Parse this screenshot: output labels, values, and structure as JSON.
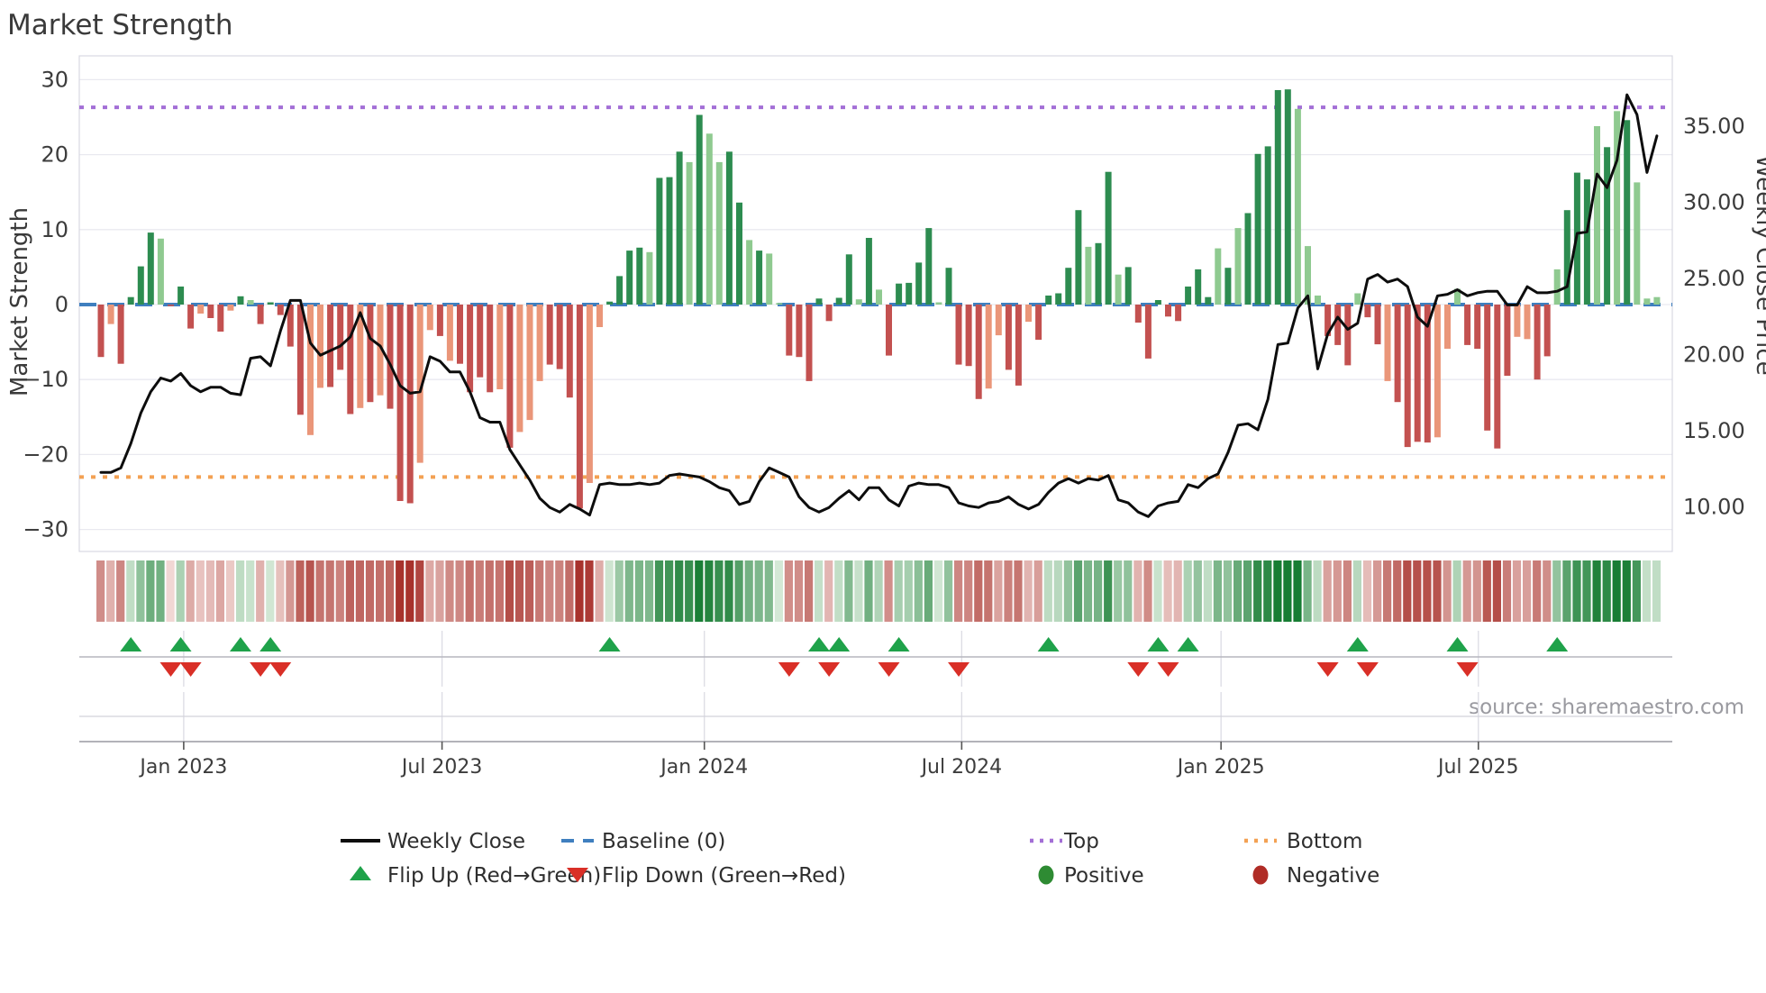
{
  "title": "Market Strength",
  "source_note": "source: sharemaestro.com",
  "left_axis": {
    "label": "Market Strength",
    "tick_labels": [
      "30",
      "20",
      "10",
      "0",
      "−10",
      "−20",
      "−30"
    ],
    "tick_values": [
      30,
      20,
      10,
      0,
      -10,
      -20,
      -30
    ]
  },
  "right_axis": {
    "label": "Weekly Close Price",
    "tick_labels": [
      "35.00",
      "30.00",
      "25.00",
      "20.00",
      "15.00",
      "10.00"
    ],
    "tick_values": [
      35,
      30,
      25,
      20,
      15,
      10
    ]
  },
  "x_axis": {
    "tick_labels": [
      "Jan 2023",
      "Jul 2023",
      "Jan 2024",
      "Jul 2024",
      "Jan 2025",
      "Jul 2025"
    ],
    "tick_weeks": [
      8.3,
      34.2,
      60.5,
      86.3,
      112.3,
      138.1
    ]
  },
  "legend": {
    "rows": [
      [
        {
          "label": "Weekly Close",
          "marker": "line",
          "color": "#0d0d0d"
        },
        {
          "label": "Baseline (0)",
          "marker": "dashes",
          "color": "#3f7fbf"
        },
        {
          "label": "Top",
          "marker": "dots",
          "color": "#a36fd6"
        },
        {
          "label": "Bottom",
          "marker": "dots",
          "color": "#f3a153"
        }
      ],
      [
        {
          "label": "Flip Up (Red→Green)",
          "marker": "triangle-up",
          "color": "#1fa24a"
        },
        {
          "label": "Flip Down (Green→Red)",
          "marker": "triangle-down",
          "color": "#d92f27"
        },
        {
          "label": "Positive",
          "marker": "circle",
          "color": "#2e8b33"
        },
        {
          "label": "Negative",
          "marker": "circle",
          "color": "#b02c26"
        }
      ]
    ]
  },
  "colors": {
    "bar_pos_dark": "#2d8c50",
    "bar_pos_light": "#8fca90",
    "bar_neg_dark": "#c35150",
    "bar_neg_light": "#ea9679",
    "price_line": "#0d0d0d",
    "baseline": "#3f7fbf",
    "top_line": "#a36fd6",
    "bottom_line": "#f3a153",
    "flip_up": "#1fa24a",
    "flip_down": "#d92f27",
    "grid": "#e9e9f0",
    "axis": "#9a9aa2"
  },
  "chart_data": {
    "type": "bar+line",
    "title": "Market Strength",
    "start_date": "2022-11-07",
    "interval": "weekly",
    "n_weeks": 157,
    "baseline": 0,
    "top_line": 26.3,
    "bottom_line": -23.0,
    "left_ylim": [
      -33,
      33
    ],
    "right_ylim": [
      7,
      39.5
    ],
    "grid": "horizontal-left-ticks",
    "legend_position": "bottom",
    "series": [
      {
        "name": "Market Strength",
        "type": "bar",
        "axis": "left",
        "values": [
          -7,
          -2.6,
          -7.9,
          1,
          5.1,
          9.6,
          8.8,
          -0.2,
          2.4,
          -3.2,
          -1.2,
          -1.8,
          -3.6,
          -0.8,
          1.1,
          0.6,
          -2.6,
          0.3,
          -1.4,
          -5.6,
          -14.7,
          -17.4,
          -11.1,
          -11,
          -8.7,
          -14.6,
          -13.8,
          -13,
          -12.1,
          -13.9,
          -26.2,
          -26.5,
          -21.1,
          -3.4,
          -4.2,
          -7.5,
          -7.9,
          -11.7,
          -9.7,
          -11.7,
          -11.3,
          -19.1,
          -17,
          -15.4,
          -10.2,
          -8,
          -8.6,
          -12.4,
          -27.2,
          -23.8,
          -3,
          0.4,
          3.8,
          7.2,
          7.6,
          7,
          16.9,
          17,
          20.4,
          19,
          25.3,
          22.8,
          19,
          20.4,
          13.6,
          8.6,
          7.2,
          6.8,
          0.2,
          -6.8,
          -7,
          -10.2,
          0.8,
          -2.2,
          0.9,
          6.7,
          0.7,
          8.9,
          2,
          -6.8,
          2.8,
          2.9,
          5.6,
          10.2,
          0.3,
          4.9,
          -8,
          -8.2,
          -12.6,
          -11.2,
          -4.1,
          -8.7,
          -10.8,
          -2.3,
          -4.7,
          1.2,
          1.5,
          4.9,
          12.6,
          7.7,
          8.2,
          17.7,
          4,
          5,
          -2.4,
          -7.2,
          0.6,
          -1.6,
          -2.2,
          2.4,
          4.7,
          1,
          7.5,
          4.9,
          10.2,
          12.2,
          20.1,
          21.1,
          28.6,
          28.7,
          26.1,
          7.8,
          1.2,
          -4.2,
          -5.4,
          -8.1,
          1.5,
          -1.7,
          -5.3,
          -10.2,
          -13,
          -19,
          -18.3,
          -18.4,
          -17.7,
          -5.9,
          2.1,
          -5.4,
          -5.9,
          -16.8,
          -19.2,
          -9.5,
          -4.3,
          -4.6,
          -10,
          -6.9,
          4.7,
          12.6,
          17.6,
          16.7,
          23.8,
          21,
          25.8,
          24.6,
          16.3,
          0.8,
          1
        ],
        "shades": "dlddddldddlddldldddd1lldddldldddlldlddddldlllddddllddddldddldllddldlldddddddldldddddlddddllddldddddlddldddddddddldldddddllldddlddlddddllldddddllddldddldldlll d"
      },
      {
        "name": "Weekly Close",
        "type": "line",
        "axis": "right",
        "values": [
          12.2,
          12.2,
          12.5,
          14.1,
          16.1,
          17.5,
          18.4,
          18.2,
          18.7,
          17.9,
          17.5,
          17.8,
          17.8,
          17.4,
          17.3,
          19.7,
          19.8,
          19.2,
          21.5,
          23.5,
          23.5,
          20.7,
          19.9,
          20.2,
          20.5,
          21.1,
          22.7,
          21,
          20.5,
          19.3,
          17.9,
          17.4,
          17.5,
          19.8,
          19.5,
          18.8,
          18.8,
          17.5,
          15.8,
          15.5,
          15.5,
          13.7,
          12.7,
          11.7,
          10.5,
          9.9,
          9.6,
          10.1,
          9.8,
          9.4,
          11.4,
          11.5,
          11.4,
          11.4,
          11.5,
          11.4,
          11.5,
          12,
          12.1,
          12,
          11.9,
          11.6,
          11.2,
          11,
          10.1,
          10.3,
          11.6,
          12.5,
          12.2,
          11.9,
          10.6,
          9.9,
          9.6,
          9.9,
          10.5,
          11,
          10.4,
          11.2,
          11.2,
          10.4,
          10,
          11.3,
          11.5,
          11.4,
          11.4,
          11.2,
          10.2,
          10,
          9.9,
          10.2,
          10.3,
          10.6,
          10.1,
          9.8,
          10.1,
          10.9,
          11.5,
          11.8,
          11.5,
          11.8,
          11.7,
          12,
          10.4,
          10.2,
          9.6,
          9.3,
          10,
          10.2,
          10.3,
          11.4,
          11.2,
          11.8,
          12.1,
          13.5,
          15.3,
          15.4,
          15,
          17,
          20.6,
          20.7,
          23,
          23.8,
          19,
          21.3,
          22.4,
          21.6,
          22,
          24.9,
          25.2,
          24.7,
          24.9,
          24.4,
          22.4,
          21.8,
          23.8,
          23.9,
          24.2,
          23.8,
          24,
          24.1,
          24.1,
          23.2,
          23.2,
          24.4,
          24,
          24,
          24.1,
          24.4,
          27.9,
          28,
          31.8,
          30.9,
          32.7,
          37,
          35.7,
          31.9,
          34.3
        ]
      }
    ],
    "flip_up_weeks": [
      3,
      8,
      14,
      17,
      51,
      72,
      74,
      80,
      95,
      106,
      109,
      126,
      136,
      146
    ],
    "flip_down_weeks": [
      7,
      9,
      16,
      18,
      69,
      73,
      79,
      86,
      104,
      107,
      123,
      127,
      137
    ],
    "heatmap": {
      "description": "weekly strip below main plot; red-green intensity encodes the Market Strength bar value of the same week",
      "values_from": "Market Strength"
    }
  }
}
